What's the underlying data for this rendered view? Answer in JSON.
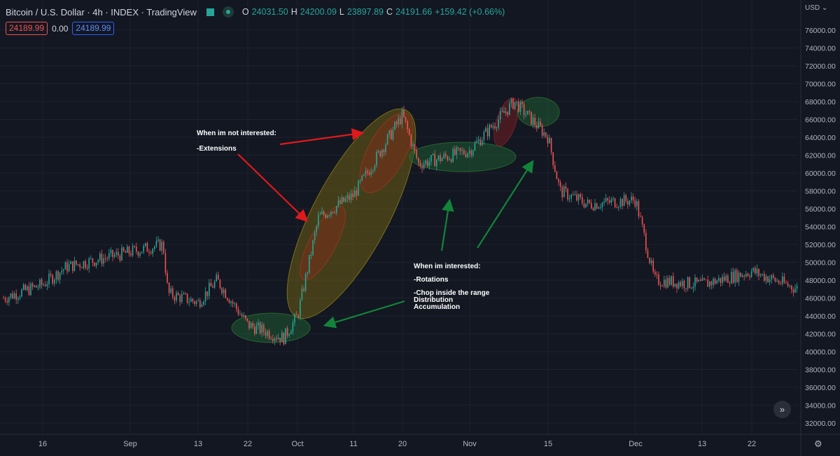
{
  "header": {
    "title": "Bitcoin / U.S. Dollar · 4h · INDEX · TradingView",
    "ohlc": [
      {
        "k": "O",
        "v": "24031.50"
      },
      {
        "k": "H",
        "v": "24200.09"
      },
      {
        "k": "L",
        "v": "23897.89"
      },
      {
        "k": "C",
        "v": "24191.66"
      },
      {
        "k": "",
        "v": "+159.42 (+0.66%)"
      }
    ],
    "bid": "24189.99",
    "spread": "0.00",
    "ask": "24189.99"
  },
  "price_axis": {
    "currency": "USD",
    "ticks": [
      "76000.00",
      "74000.00",
      "72000.00",
      "70000.00",
      "68000.00",
      "66000.00",
      "64000.00",
      "62000.00",
      "60000.00",
      "58000.00",
      "56000.00",
      "54000.00",
      "52000.00",
      "50000.00",
      "48000.00",
      "46000.00",
      "44000.00",
      "42000.00",
      "40000.00",
      "38000.00",
      "36000.00",
      "34000.00",
      "32000.00"
    ]
  },
  "time_axis": {
    "ticks": [
      "16",
      "Sep",
      "13",
      "22",
      "Oct",
      "11",
      "20",
      "Nov",
      "15",
      "Dec",
      "13",
      "22"
    ]
  },
  "annotations": {
    "not_interested_title": "When im not interested:",
    "not_interested_item": "-Extensions",
    "interested_title": "When im interested:",
    "interested_item1": "-Rotations",
    "interested_item2": "-Chop inside the range",
    "interested_item3": "Distribution",
    "interested_item4": "Accumulation"
  },
  "colors": {
    "background": "#131722",
    "up": "#26a69a",
    "down": "#ef5350",
    "grid": "#1e222d",
    "arrow_red": "#e0191c",
    "arrow_green": "#12843a"
  },
  "chart_data": {
    "type": "candlestick",
    "title": "Bitcoin / U.S. Dollar",
    "timeframe": "4h",
    "ylim": [
      31000,
      77500
    ],
    "x_ticks": [
      "16",
      "Sep",
      "13",
      "22",
      "Oct",
      "11",
      "20",
      "Nov",
      "15",
      "Dec",
      "13",
      "22"
    ],
    "y_ticks": [
      32000,
      34000,
      36000,
      38000,
      40000,
      42000,
      44000,
      46000,
      48000,
      50000,
      52000,
      54000,
      56000,
      58000,
      60000,
      62000,
      64000,
      66000,
      68000,
      70000,
      72000,
      74000,
      76000
    ],
    "last": {
      "open": 24031.5,
      "high": 24200.09,
      "low": 23897.89,
      "close": 24191.66,
      "change": "+159.42 (+0.66%)"
    },
    "price_path_approx": [
      {
        "x": "Aug 09",
        "close": 46000
      },
      {
        "x": "16",
        "close": 47500
      },
      {
        "x": "Aug 20",
        "close": 49500
      },
      {
        "x": "Sep 07",
        "close": 52000
      },
      {
        "x": "Sep 08",
        "close": 46500
      },
      {
        "x": "13",
        "close": 45500
      },
      {
        "x": "Sep 17",
        "close": 48000
      },
      {
        "x": "22",
        "close": 43000
      },
      {
        "x": "Sep 29",
        "close": 41500
      },
      {
        "x": "Oct",
        "close": 44000
      },
      {
        "x": "Oct 06",
        "close": 55000
      },
      {
        "x": "11",
        "close": 57500
      },
      {
        "x": "20",
        "close": 66500
      },
      {
        "x": "Oct 23",
        "close": 61000
      },
      {
        "x": "Nov",
        "close": 62500
      },
      {
        "x": "Nov 09",
        "close": 68000
      },
      {
        "x": "15",
        "close": 64000
      },
      {
        "x": "Nov 18",
        "close": 58000
      },
      {
        "x": "Nov 24",
        "close": 56500
      },
      {
        "x": "Dec",
        "close": 57000
      },
      {
        "x": "Dec 04",
        "close": 48000
      },
      {
        "x": "13",
        "close": 47500
      },
      {
        "x": "22",
        "close": 49000
      },
      {
        "x": "Dec 27",
        "close": 47000
      }
    ]
  }
}
